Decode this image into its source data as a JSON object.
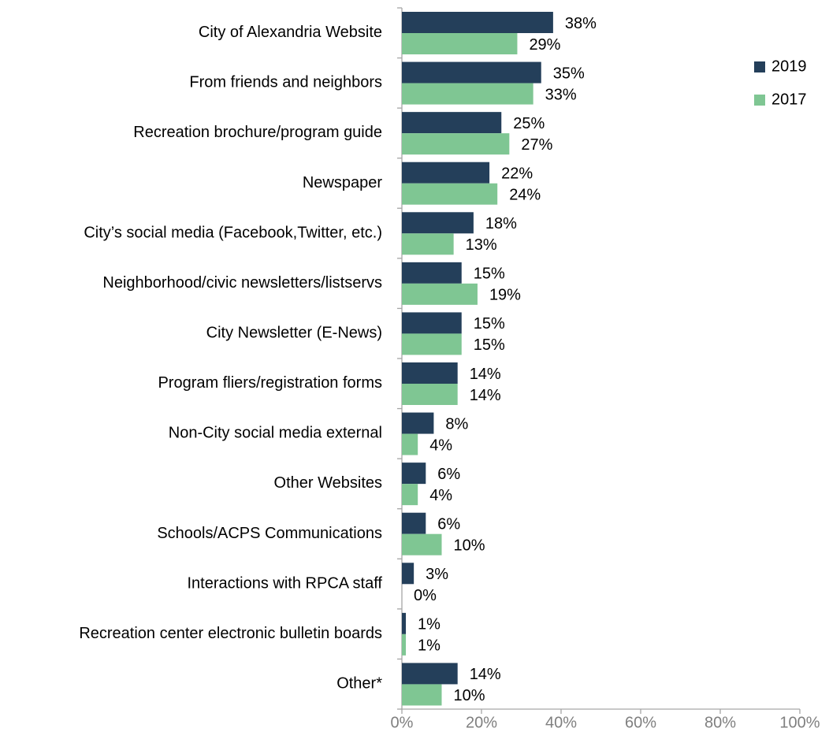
{
  "chart_data": {
    "type": "bar",
    "orientation": "horizontal",
    "categories": [
      "City of Alexandria Website",
      "From friends and neighbors",
      "Recreation brochure/program guide",
      "Newspaper",
      "City’s social media (Facebook,Twitter, etc.)",
      "Neighborhood/civic newsletters/listservs",
      "City Newsletter (E-News)",
      "Program fliers/registration forms",
      "Non-City social media external",
      "Other Websites",
      "Schools/ACPS Communications",
      "Interactions with RPCA staff",
      "Recreation center electronic bulletin boards",
      "Other*"
    ],
    "series": [
      {
        "name": "2019",
        "color": "#243f5a",
        "values": [
          38,
          35,
          25,
          22,
          18,
          15,
          15,
          14,
          8,
          6,
          6,
          3,
          1,
          14
        ],
        "value_labels": [
          "38%",
          "35%",
          "25%",
          "22%",
          "18%",
          "15%",
          "15%",
          "14%",
          "8%",
          "6%",
          "6%",
          "3%",
          "1%",
          "14%"
        ]
      },
      {
        "name": "2017",
        "color": "#7fc693",
        "values": [
          29,
          33,
          27,
          24,
          13,
          19,
          15,
          14,
          4,
          4,
          10,
          0,
          1,
          10
        ],
        "value_labels": [
          "29%",
          "33%",
          "27%",
          "24%",
          "13%",
          "19%",
          "15%",
          "14%",
          "4%",
          "4%",
          "10%",
          "0%",
          "1%",
          "10%"
        ]
      }
    ],
    "xlim": [
      0,
      100
    ],
    "xticks": [
      {
        "value": 0,
        "label": "0%"
      },
      {
        "value": 20,
        "label": "20%"
      },
      {
        "value": 40,
        "label": "40%"
      },
      {
        "value": 60,
        "label": "60%"
      },
      {
        "value": 80,
        "label": "80%"
      },
      {
        "value": 100,
        "label": "100%"
      }
    ],
    "legend": "right"
  }
}
